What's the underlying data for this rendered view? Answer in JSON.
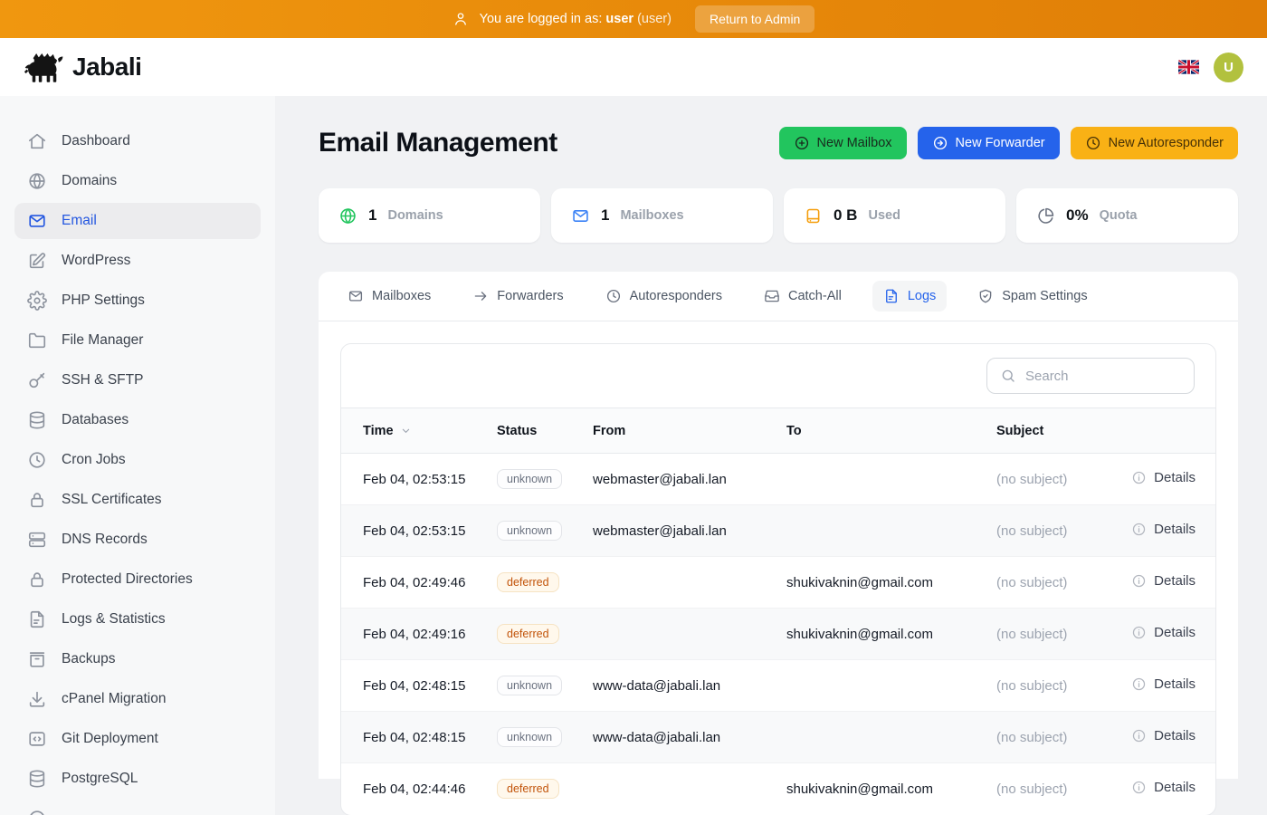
{
  "admin_bar": {
    "message_prefix": "You are logged in as:",
    "username": "user",
    "role": "(user)",
    "return_button_label": "Return to Admin"
  },
  "header": {
    "brand": "Jabali",
    "language_flag": "uk-flag",
    "avatar_initial": "U"
  },
  "sidebar": {
    "items": [
      {
        "label": "Dashboard",
        "icon": "home",
        "active": false
      },
      {
        "label": "Domains",
        "icon": "globe",
        "active": false
      },
      {
        "label": "Email",
        "icon": "mail",
        "active": true
      },
      {
        "label": "WordPress",
        "icon": "pencil",
        "active": false
      },
      {
        "label": "PHP Settings",
        "icon": "gear",
        "active": false
      },
      {
        "label": "File Manager",
        "icon": "folder",
        "active": false
      },
      {
        "label": "SSH & SFTP",
        "icon": "key",
        "active": false
      },
      {
        "label": "Databases",
        "icon": "database",
        "active": false
      },
      {
        "label": "Cron Jobs",
        "icon": "clock",
        "active": false
      },
      {
        "label": "SSL Certificates",
        "icon": "lock",
        "active": false
      },
      {
        "label": "DNS Records",
        "icon": "server",
        "active": false
      },
      {
        "label": "Protected Directories",
        "icon": "lock",
        "active": false
      },
      {
        "label": "Logs & Statistics",
        "icon": "file-text",
        "active": false
      },
      {
        "label": "Backups",
        "icon": "archive",
        "active": false
      },
      {
        "label": "cPanel Migration",
        "icon": "download",
        "active": false
      },
      {
        "label": "Git Deployment",
        "icon": "code",
        "active": false
      },
      {
        "label": "PostgreSQL",
        "icon": "database",
        "active": false
      },
      {
        "label": "",
        "icon": "circle",
        "active": false
      }
    ]
  },
  "page": {
    "title": "Email Management",
    "actions": [
      {
        "label": "New Mailbox",
        "icon": "plus-circle",
        "bg": "#22c55e",
        "fg": "#182a1d"
      },
      {
        "label": "New Forwarder",
        "icon": "arrow-circle",
        "bg": "#2563eb",
        "fg": "#ffffff"
      },
      {
        "label": "New Autoresponder",
        "icon": "clock",
        "bg": "#f9b115",
        "fg": "#463107"
      }
    ]
  },
  "stats": [
    {
      "value": "1",
      "label": "Domains",
      "icon": "globe",
      "color": "#22c55e"
    },
    {
      "value": "1",
      "label": "Mailboxes",
      "icon": "mail",
      "color": "#3b82f6"
    },
    {
      "value": "0 B",
      "label": "Used",
      "icon": "drive",
      "color": "#f59e0b"
    },
    {
      "value": "0%",
      "label": "Quota",
      "icon": "pie",
      "color": "#6b7280"
    }
  ],
  "tabs": [
    {
      "label": "Mailboxes",
      "icon": "mail",
      "active": false
    },
    {
      "label": "Forwarders",
      "icon": "arrow-right",
      "active": false
    },
    {
      "label": "Autoresponders",
      "icon": "clock",
      "active": false
    },
    {
      "label": "Catch-All",
      "icon": "inbox",
      "active": false
    },
    {
      "label": "Logs",
      "icon": "file-text",
      "active": true
    },
    {
      "label": "Spam Settings",
      "icon": "shield-check",
      "active": false
    }
  ],
  "logs": {
    "search_placeholder": "Search",
    "columns": [
      "Time",
      "Status",
      "From",
      "To",
      "Subject"
    ],
    "details_label": "Details",
    "status_colors": {
      "deferred_text": "#c2540a",
      "unknown_text": "#6b7280"
    },
    "rows": [
      {
        "time": "Feb 04, 02:53:15",
        "status": "unknown",
        "from": "webmaster@jabali.lan",
        "to": "",
        "subject": "(no subject)"
      },
      {
        "time": "Feb 04, 02:53:15",
        "status": "unknown",
        "from": "webmaster@jabali.lan",
        "to": "",
        "subject": "(no subject)"
      },
      {
        "time": "Feb 04, 02:49:46",
        "status": "deferred",
        "from": "",
        "to": "shukivaknin@gmail.com",
        "subject": "(no subject)"
      },
      {
        "time": "Feb 04, 02:49:16",
        "status": "deferred",
        "from": "",
        "to": "shukivaknin@gmail.com",
        "subject": "(no subject)"
      },
      {
        "time": "Feb 04, 02:48:15",
        "status": "unknown",
        "from": "www-data@jabali.lan",
        "to": "",
        "subject": "(no subject)"
      },
      {
        "time": "Feb 04, 02:48:15",
        "status": "unknown",
        "from": "www-data@jabali.lan",
        "to": "",
        "subject": "(no subject)"
      },
      {
        "time": "Feb 04, 02:44:46",
        "status": "deferred",
        "from": "",
        "to": "shukivaknin@gmail.com",
        "subject": "(no subject)"
      }
    ]
  }
}
